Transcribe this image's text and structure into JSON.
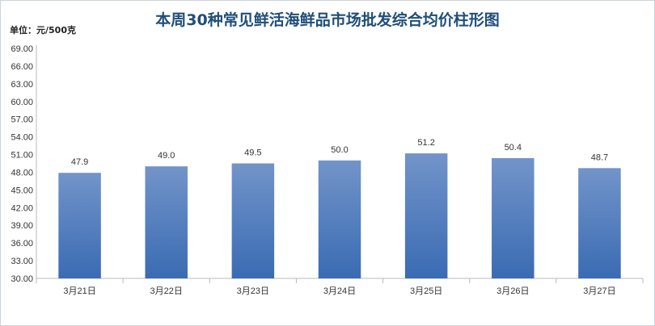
{
  "chart_data": {
    "type": "bar",
    "title": "本周30种常见鲜活海鲜品市场批发综合均价柱形图",
    "unit_label": "单位：元/500克",
    "categories": [
      "3月21日",
      "3月22日",
      "3月23日",
      "3月24日",
      "3月25日",
      "3月26日",
      "3月27日"
    ],
    "values": [
      47.9,
      49.0,
      49.5,
      50.0,
      51.2,
      50.4,
      48.7
    ],
    "value_labels": [
      "47.9",
      "49.0",
      "49.5",
      "50.0",
      "51.2",
      "50.4",
      "48.7"
    ],
    "yticks": [
      "30.00",
      "33.00",
      "36.00",
      "39.00",
      "42.00",
      "45.00",
      "48.00",
      "51.00",
      "54.00",
      "57.00",
      "60.00",
      "63.00",
      "66.00",
      "69.00"
    ],
    "ylim": [
      30,
      69
    ],
    "ystep": 3,
    "grid": false,
    "legend": "none",
    "colors": {
      "bar_top": "#7294c9",
      "bar_bottom": "#3a6bb3",
      "title": "#1f4e79",
      "axis": "#b8b8b8",
      "text": "#333333"
    }
  }
}
